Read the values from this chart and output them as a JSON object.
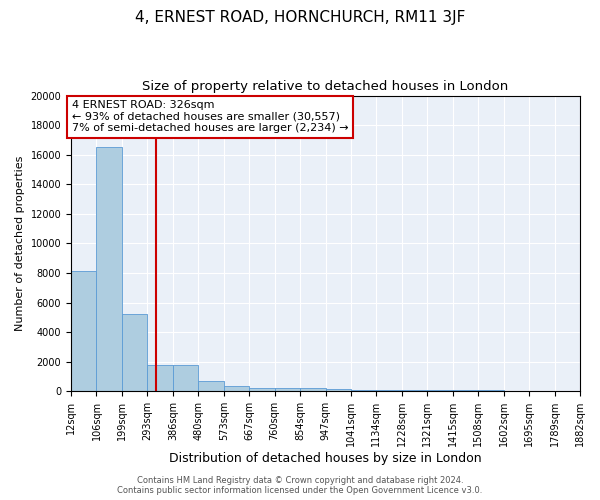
{
  "title": "4, ERNEST ROAD, HORNCHURCH, RM11 3JF",
  "subtitle": "Size of property relative to detached houses in London",
  "xlabel": "Distribution of detached houses by size in London",
  "ylabel": "Number of detached properties",
  "bin_labels": [
    "12sqm",
    "106sqm",
    "199sqm",
    "293sqm",
    "386sqm",
    "480sqm",
    "573sqm",
    "667sqm",
    "760sqm",
    "854sqm",
    "947sqm",
    "1041sqm",
    "1134sqm",
    "1228sqm",
    "1321sqm",
    "1415sqm",
    "1508sqm",
    "1602sqm",
    "1695sqm",
    "1789sqm",
    "1882sqm"
  ],
  "bar_heights": [
    8100,
    16500,
    5200,
    1800,
    1800,
    700,
    350,
    250,
    200,
    200,
    150,
    100,
    100,
    80,
    70,
    60,
    50,
    40,
    30,
    20
  ],
  "bar_color": "#aecde0",
  "bar_edge_color": "#5b9bd5",
  "property_bin": 3.35,
  "red_line_color": "#cc0000",
  "ylim": [
    0,
    20000
  ],
  "yticks": [
    0,
    2000,
    4000,
    6000,
    8000,
    10000,
    12000,
    14000,
    16000,
    18000,
    20000
  ],
  "bg_color": "#eaf0f8",
  "annotation_text": "4 ERNEST ROAD: 326sqm\n← 93% of detached houses are smaller (30,557)\n7% of semi-detached houses are larger (2,234) →",
  "annotation_box_color": "#ffffff",
  "annotation_box_edge_color": "#cc0000",
  "footer_line1": "Contains HM Land Registry data © Crown copyright and database right 2024.",
  "footer_line2": "Contains public sector information licensed under the Open Government Licence v3.0.",
  "title_fontsize": 11,
  "subtitle_fontsize": 9.5,
  "xlabel_fontsize": 9,
  "ylabel_fontsize": 8,
  "tick_fontsize": 7,
  "annotation_fontsize": 8,
  "footer_fontsize": 6
}
